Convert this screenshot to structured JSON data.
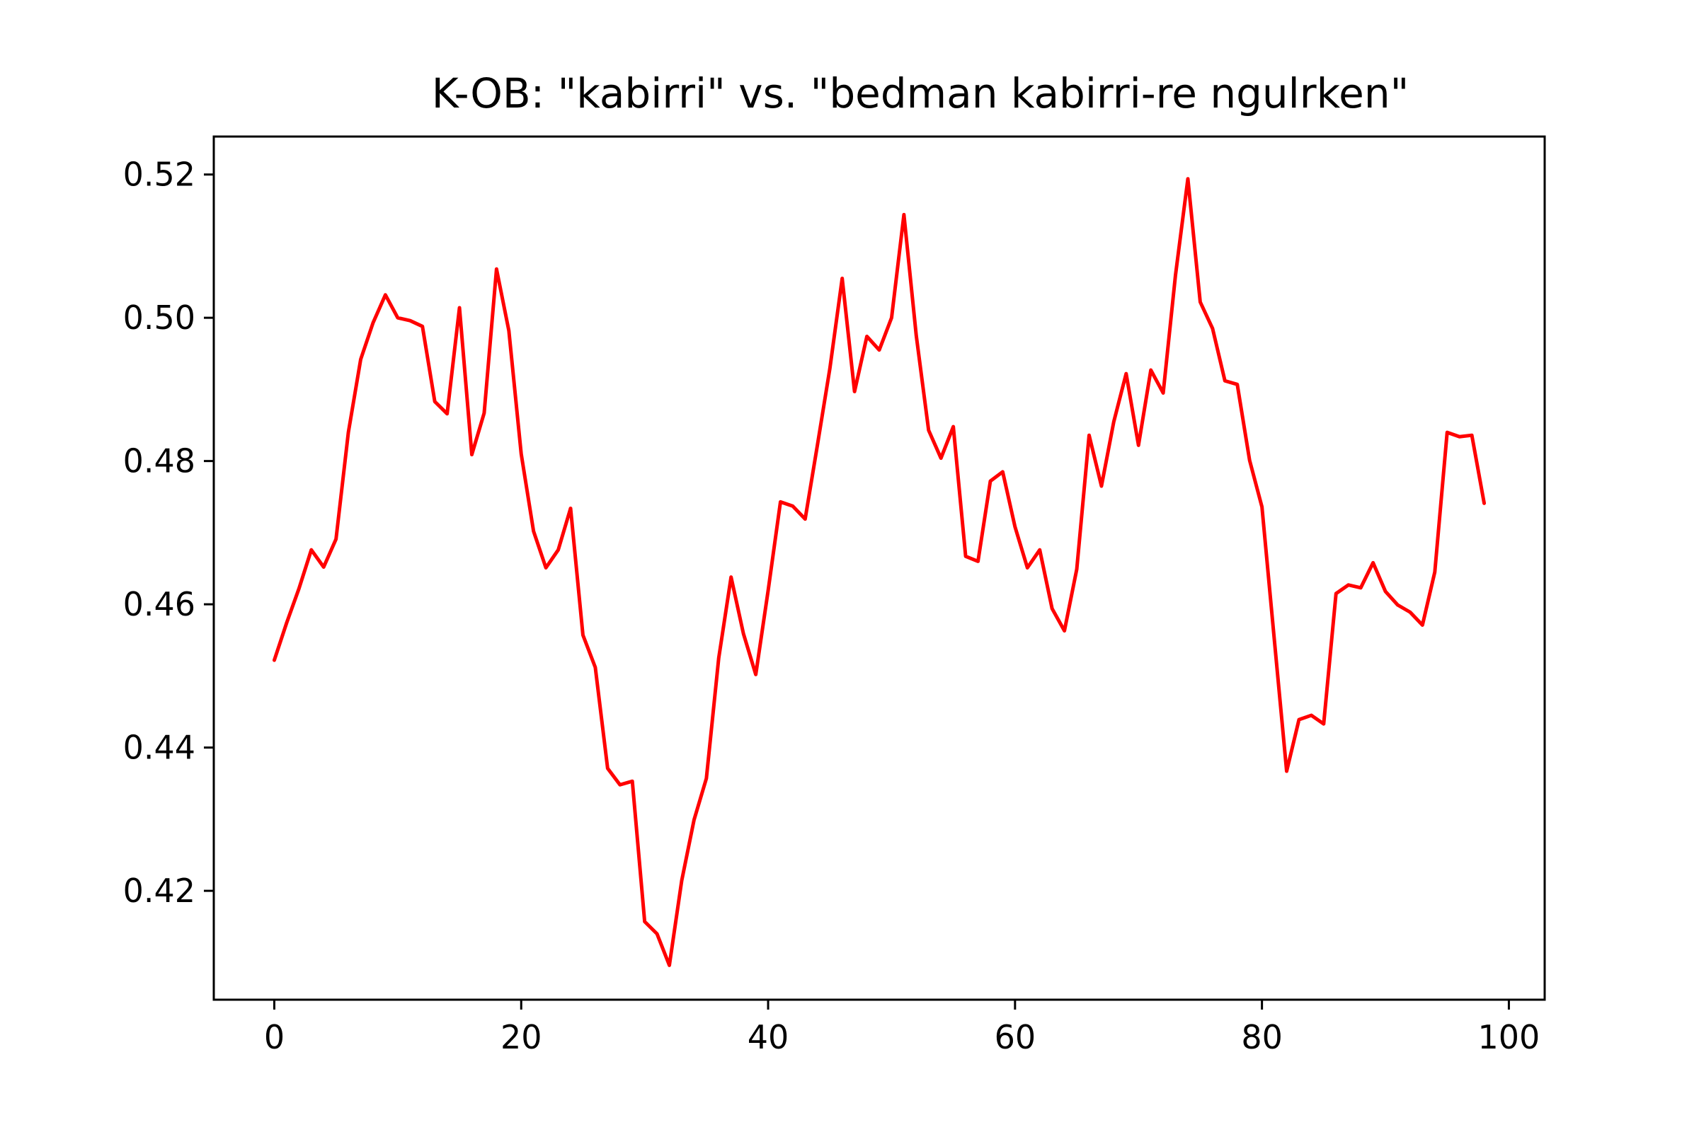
{
  "chart_data": {
    "type": "line",
    "title": "K-OB: \"kabirri\" vs. \"bedman kabirri-re ngulrken\"",
    "xlabel": "",
    "ylabel": "",
    "xlim": [
      -4.9,
      102.9
    ],
    "ylim": [
      0.4048,
      0.5253
    ],
    "xticks": [
      0,
      20,
      40,
      60,
      80,
      100
    ],
    "yticks": [
      0.42,
      0.44,
      0.46,
      0.48,
      0.5,
      0.52
    ],
    "xtick_labels": [
      "0",
      "20",
      "40",
      "60",
      "80",
      "100"
    ],
    "ytick_labels": [
      "0.42",
      "0.44",
      "0.46",
      "0.48",
      "0.50",
      "0.52"
    ],
    "grid": false,
    "series": [
      {
        "color": "#ff0000",
        "x": [
          0,
          1,
          2,
          3,
          4,
          5,
          6,
          7,
          8,
          9,
          10,
          11,
          12,
          13,
          14,
          15,
          16,
          17,
          18,
          19,
          20,
          21,
          22,
          23,
          24,
          25,
          26,
          27,
          28,
          29,
          30,
          31,
          32,
          33,
          34,
          35,
          36,
          37,
          38,
          39,
          40,
          41,
          42,
          43,
          44,
          45,
          46,
          47,
          48,
          49,
          50,
          51,
          52,
          53,
          54,
          55,
          56,
          57,
          58,
          59,
          60,
          61,
          62,
          63,
          64,
          65,
          66,
          67,
          68,
          69,
          70,
          71,
          72,
          73,
          74,
          75,
          76,
          77,
          78,
          79,
          80,
          81,
          82,
          83,
          84,
          85,
          86,
          87,
          88,
          89,
          90,
          91,
          92,
          93,
          94,
          95,
          96,
          97,
          98
        ],
        "y": [
          0.4522,
          0.4574,
          0.4622,
          0.4676,
          0.4652,
          0.4691,
          0.484,
          0.4942,
          0.4993,
          0.5032,
          0.5,
          0.4996,
          0.4988,
          0.4883,
          0.4866,
          0.5014,
          0.4809,
          0.4867,
          0.5068,
          0.4982,
          0.481,
          0.4702,
          0.4651,
          0.4676,
          0.4734,
          0.4557,
          0.4512,
          0.4371,
          0.4348,
          0.4353,
          0.4157,
          0.414,
          0.4096,
          0.4214,
          0.4299,
          0.4357,
          0.4525,
          0.4638,
          0.4559,
          0.4502,
          0.4619,
          0.4743,
          0.4737,
          0.4719,
          0.4823,
          0.4929,
          0.5055,
          0.4897,
          0.4974,
          0.4955,
          0.5,
          0.5144,
          0.4975,
          0.4843,
          0.4804,
          0.4848,
          0.4667,
          0.466,
          0.4772,
          0.4785,
          0.4708,
          0.4651,
          0.4676,
          0.4594,
          0.4563,
          0.4649,
          0.4836,
          0.4765,
          0.4855,
          0.4922,
          0.4822,
          0.4927,
          0.4895,
          0.506,
          0.5194,
          0.5022,
          0.4985,
          0.4912,
          0.4907,
          0.4801,
          0.4736,
          0.4551,
          0.4367,
          0.4439,
          0.4445,
          0.4433,
          0.4615,
          0.4627,
          0.4623,
          0.4658,
          0.4618,
          0.4599,
          0.4589,
          0.4571,
          0.4645,
          0.484,
          0.4834,
          0.4836,
          0.4741
        ]
      }
    ]
  }
}
